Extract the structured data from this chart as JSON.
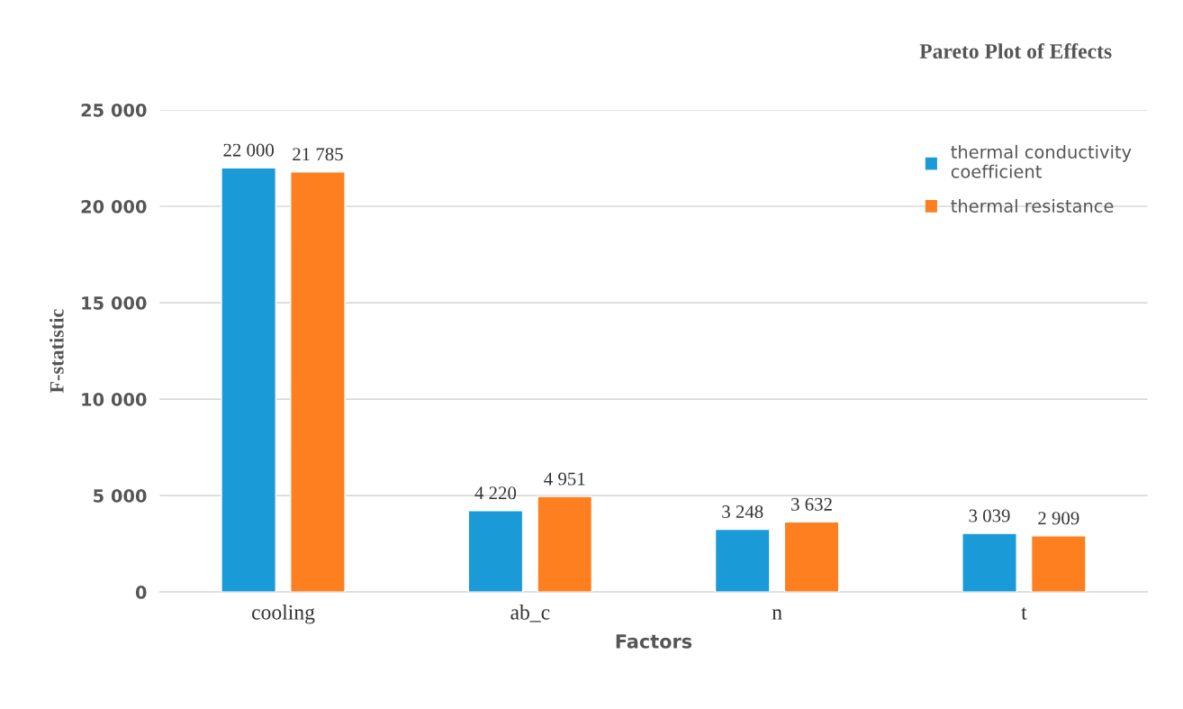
{
  "chart_data": {
    "type": "bar",
    "title": "Pareto Plot of Effects",
    "xlabel": "Factors",
    "ylabel": "F-statistic",
    "categories": [
      "cooling",
      "ab_c",
      "n",
      "t"
    ],
    "series": [
      {
        "name": "thermal conductivity coefficient",
        "color": "#1a9bd7",
        "values": [
          22000,
          4220,
          3248,
          3039
        ],
        "value_labels": [
          "22 000",
          "4 220",
          "3 248",
          "3 039"
        ]
      },
      {
        "name": "thermal resistance",
        "color": "#fd7f20",
        "values": [
          21785,
          4951,
          3632,
          2909
        ],
        "value_labels": [
          "21 785",
          "4 951",
          "3 632",
          "2 909"
        ]
      }
    ],
    "ylim": [
      0,
      25000
    ],
    "yticks": [
      0,
      {
        "value": 5000,
        "label": "5 000"
      },
      {
        "value": 10000,
        "label": "10 000"
      },
      {
        "value": 15000,
        "label": "15 000"
      },
      {
        "value": 20000,
        "label": "20 000"
      },
      {
        "value": 25000,
        "label": "25 000"
      }
    ],
    "grid": "y",
    "legend": "top right"
  }
}
